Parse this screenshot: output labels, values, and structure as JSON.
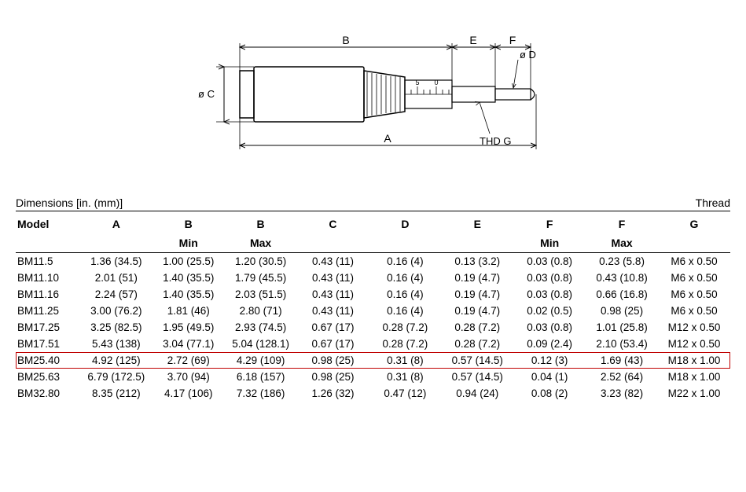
{
  "colors": {
    "line": "#000000",
    "background": "#ffffff",
    "highlight_border": "#c00000",
    "dim_stroke": "#000000"
  },
  "diagram": {
    "type": "engineering-drawing",
    "labels": {
      "A": "A",
      "B": "B",
      "C": "ø C",
      "D": "ø D",
      "E": "E",
      "F": "F",
      "THDG": "THD G"
    },
    "scale_digits": [
      "5",
      "0"
    ],
    "line_width_thin": 1,
    "line_width_med": 1.5
  },
  "table": {
    "caption_left": "Dimensions [in. (mm)]",
    "caption_right": "Thread",
    "headers_row1": [
      "Model",
      "A",
      "B",
      "B",
      "C",
      "D",
      "E",
      "F",
      "F",
      "G"
    ],
    "headers_row2": [
      "",
      "",
      "Min",
      "Max",
      "",
      "",
      "",
      "Min",
      "Max",
      ""
    ],
    "highlight_index": 6,
    "rows": [
      [
        "BM11.5",
        "1.36 (34.5)",
        "1.00 (25.5)",
        "1.20 (30.5)",
        "0.43 (11)",
        "0.16 (4)",
        "0.13 (3.2)",
        "0.03 (0.8)",
        "0.23 (5.8)",
        "M6 x 0.50"
      ],
      [
        "BM11.10",
        "2.01 (51)",
        "1.40 (35.5)",
        "1.79 (45.5)",
        "0.43 (11)",
        "0.16 (4)",
        "0.19 (4.7)",
        "0.03 (0.8)",
        "0.43 (10.8)",
        "M6 x 0.50"
      ],
      [
        "BM11.16",
        "2.24 (57)",
        "1.40 (35.5)",
        "2.03 (51.5)",
        "0.43 (11)",
        "0.16 (4)",
        "0.19 (4.7)",
        "0.03 (0.8)",
        "0.66 (16.8)",
        "M6 x 0.50"
      ],
      [
        "BM11.25",
        "3.00 (76.2)",
        "1.81 (46)",
        "2.80 (71)",
        "0.43 (11)",
        "0.16 (4)",
        "0.19 (4.7)",
        "0.02 (0.5)",
        "0.98 (25)",
        "M6 x 0.50"
      ],
      [
        "BM17.25",
        "3.25 (82.5)",
        "1.95 (49.5)",
        "2.93 (74.5)",
        "0.67 (17)",
        "0.28 (7.2)",
        "0.28 (7.2)",
        "0.03 (0.8)",
        "1.01 (25.8)",
        "M12 x 0.50"
      ],
      [
        "BM17.51",
        "5.43 (138)",
        "3.04 (77.1)",
        "5.04 (128.1)",
        "0.67 (17)",
        "0.28 (7.2)",
        "0.28 (7.2)",
        "0.09 (2.4)",
        "2.10 (53.4)",
        "M12 x 0.50"
      ],
      [
        "BM25.40",
        "4.92 (125)",
        "2.72 (69)",
        "4.29 (109)",
        "0.98 (25)",
        "0.31 (8)",
        "0.57 (14.5)",
        "0.12 (3)",
        "1.69 (43)",
        "M18 x 1.00"
      ],
      [
        "BM25.63",
        "6.79 (172.5)",
        "3.70 (94)",
        "6.18 (157)",
        "0.98 (25)",
        "0.31 (8)",
        "0.57 (14.5)",
        "0.04 (1)",
        "2.52 (64)",
        "M18 x 1.00"
      ],
      [
        "BM32.80",
        "8.35 (212)",
        "4.17 (106)",
        "7.32 (186)",
        "1.26 (32)",
        "0.47 (12)",
        "0.94 (24)",
        "0.08 (2)",
        "3.23 (82)",
        "M22 x 1.00"
      ]
    ]
  }
}
